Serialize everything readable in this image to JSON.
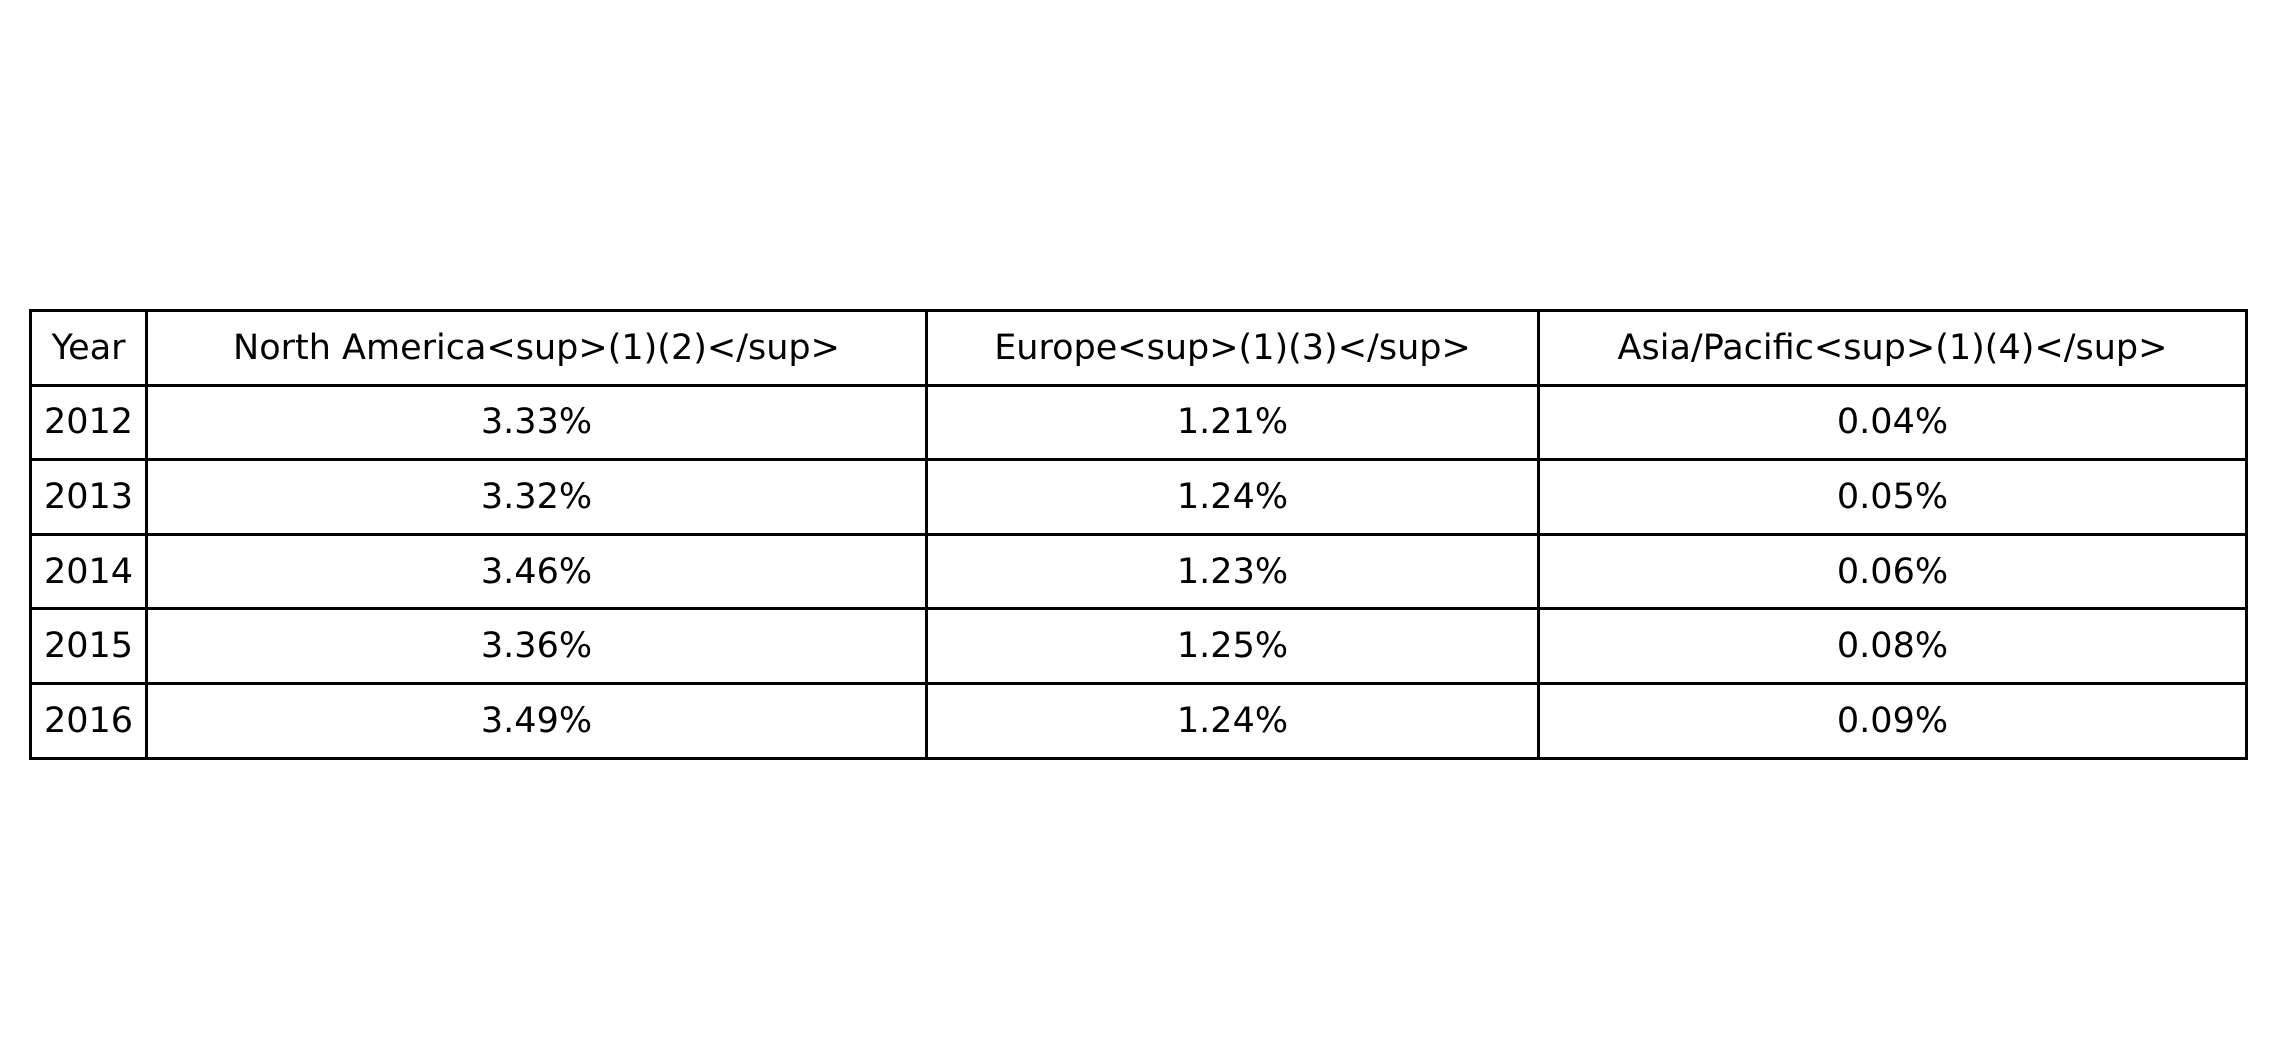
{
  "chart_data": {
    "type": "table",
    "columns": [
      "Year",
      "North America<sup>(1)(2)</sup>",
      "Europe<sup>(1)(3)</sup>",
      "Asia/Pacific<sup>(1)(4)</sup>"
    ],
    "rows": [
      [
        "2012",
        "3.33%",
        "1.21%",
        "0.04%"
      ],
      [
        "2013",
        "3.32%",
        "1.24%",
        "0.05%"
      ],
      [
        "2014",
        "3.46%",
        "1.23%",
        "0.06%"
      ],
      [
        "2015",
        "3.36%",
        "1.25%",
        "0.08%"
      ],
      [
        "2016",
        "3.49%",
        "1.24%",
        "0.09%"
      ]
    ],
    "grid": true
  }
}
